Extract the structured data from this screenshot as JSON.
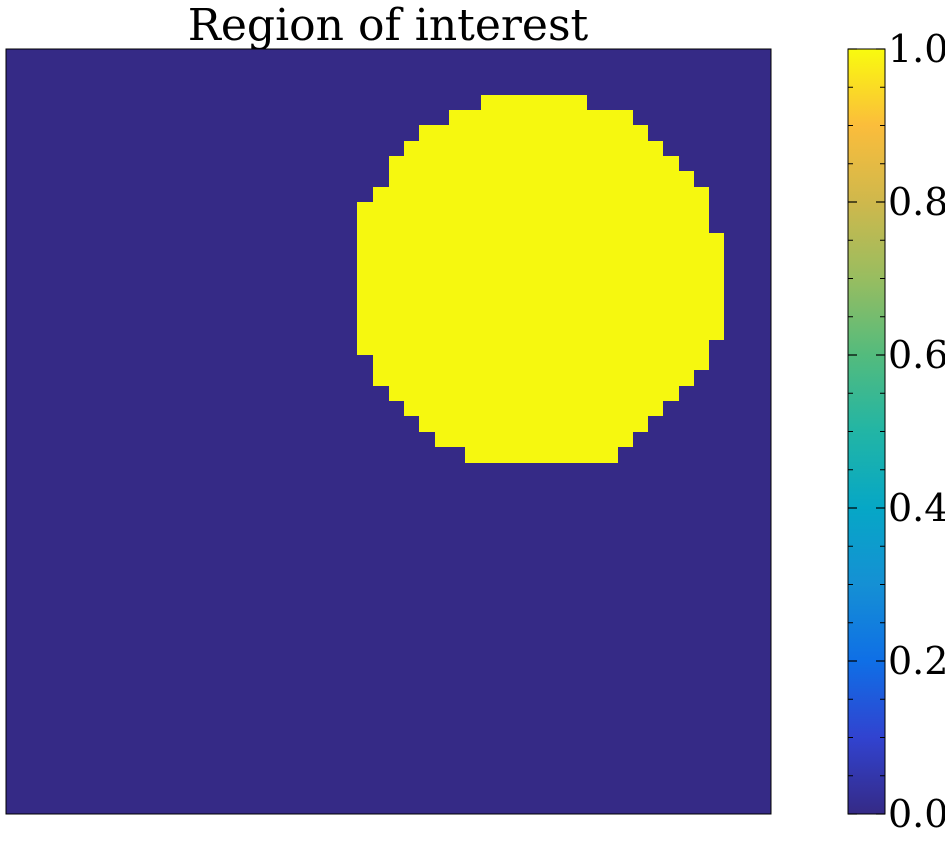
{
  "chart_data": {
    "type": "heatmap",
    "title": "Region of interest",
    "xlabel": "",
    "ylabel": "",
    "grid": false,
    "axes_ticks": false,
    "mask_shape": "disk",
    "mask_value_inside": 1.0,
    "mask_value_outside": 0.0,
    "colors": {
      "inside": "#f6f80f",
      "outside": "#352a86",
      "frame": "#000000"
    },
    "colorbar": {
      "vmin": 0.0,
      "vmax": 1.0,
      "ticks": [
        "0.0",
        "0.2",
        "0.4",
        "0.6",
        "0.8",
        "1.0"
      ],
      "colormap": "parula",
      "colormap_stops": [
        {
          "value": 0.0,
          "color": "#352a86"
        },
        {
          "value": 0.1,
          "color": "#3143d0"
        },
        {
          "value": 0.2,
          "color": "#0f6fe6"
        },
        {
          "value": 0.3,
          "color": "#1590d4"
        },
        {
          "value": 0.4,
          "color": "#06a7c6"
        },
        {
          "value": 0.5,
          "color": "#22b5a5"
        },
        {
          "value": 0.6,
          "color": "#53bb7d"
        },
        {
          "value": 0.7,
          "color": "#98bd60"
        },
        {
          "value": 0.8,
          "color": "#cfb84c"
        },
        {
          "value": 0.9,
          "color": "#fbbd3b"
        },
        {
          "value": 1.0,
          "color": "#f9fb0e"
        }
      ]
    }
  }
}
